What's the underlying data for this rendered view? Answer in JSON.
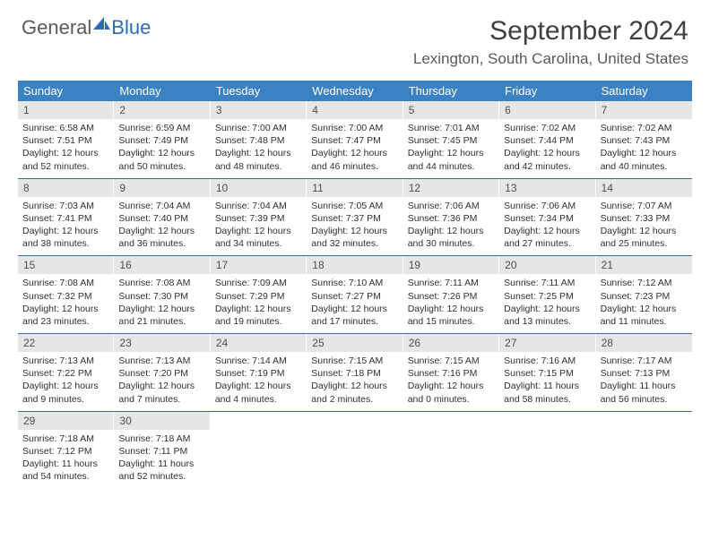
{
  "logo": {
    "general": "General",
    "blue": "Blue"
  },
  "title": "September 2024",
  "location": "Lexington, South Carolina, United States",
  "headerBg": "#3b82c4",
  "dayHeaders": [
    "Sunday",
    "Monday",
    "Tuesday",
    "Wednesday",
    "Thursday",
    "Friday",
    "Saturday"
  ],
  "weeks": [
    [
      {
        "n": "1",
        "sr": "6:58 AM",
        "ss": "7:51 PM",
        "dl": "12 hours and 52 minutes."
      },
      {
        "n": "2",
        "sr": "6:59 AM",
        "ss": "7:49 PM",
        "dl": "12 hours and 50 minutes."
      },
      {
        "n": "3",
        "sr": "7:00 AM",
        "ss": "7:48 PM",
        "dl": "12 hours and 48 minutes."
      },
      {
        "n": "4",
        "sr": "7:00 AM",
        "ss": "7:47 PM",
        "dl": "12 hours and 46 minutes."
      },
      {
        "n": "5",
        "sr": "7:01 AM",
        "ss": "7:45 PM",
        "dl": "12 hours and 44 minutes."
      },
      {
        "n": "6",
        "sr": "7:02 AM",
        "ss": "7:44 PM",
        "dl": "12 hours and 42 minutes."
      },
      {
        "n": "7",
        "sr": "7:02 AM",
        "ss": "7:43 PM",
        "dl": "12 hours and 40 minutes."
      }
    ],
    [
      {
        "n": "8",
        "sr": "7:03 AM",
        "ss": "7:41 PM",
        "dl": "12 hours and 38 minutes."
      },
      {
        "n": "9",
        "sr": "7:04 AM",
        "ss": "7:40 PM",
        "dl": "12 hours and 36 minutes."
      },
      {
        "n": "10",
        "sr": "7:04 AM",
        "ss": "7:39 PM",
        "dl": "12 hours and 34 minutes."
      },
      {
        "n": "11",
        "sr": "7:05 AM",
        "ss": "7:37 PM",
        "dl": "12 hours and 32 minutes."
      },
      {
        "n": "12",
        "sr": "7:06 AM",
        "ss": "7:36 PM",
        "dl": "12 hours and 30 minutes."
      },
      {
        "n": "13",
        "sr": "7:06 AM",
        "ss": "7:34 PM",
        "dl": "12 hours and 27 minutes."
      },
      {
        "n": "14",
        "sr": "7:07 AM",
        "ss": "7:33 PM",
        "dl": "12 hours and 25 minutes."
      }
    ],
    [
      {
        "n": "15",
        "sr": "7:08 AM",
        "ss": "7:32 PM",
        "dl": "12 hours and 23 minutes."
      },
      {
        "n": "16",
        "sr": "7:08 AM",
        "ss": "7:30 PM",
        "dl": "12 hours and 21 minutes."
      },
      {
        "n": "17",
        "sr": "7:09 AM",
        "ss": "7:29 PM",
        "dl": "12 hours and 19 minutes."
      },
      {
        "n": "18",
        "sr": "7:10 AM",
        "ss": "7:27 PM",
        "dl": "12 hours and 17 minutes."
      },
      {
        "n": "19",
        "sr": "7:11 AM",
        "ss": "7:26 PM",
        "dl": "12 hours and 15 minutes."
      },
      {
        "n": "20",
        "sr": "7:11 AM",
        "ss": "7:25 PM",
        "dl": "12 hours and 13 minutes."
      },
      {
        "n": "21",
        "sr": "7:12 AM",
        "ss": "7:23 PM",
        "dl": "12 hours and 11 minutes."
      }
    ],
    [
      {
        "n": "22",
        "sr": "7:13 AM",
        "ss": "7:22 PM",
        "dl": "12 hours and 9 minutes."
      },
      {
        "n": "23",
        "sr": "7:13 AM",
        "ss": "7:20 PM",
        "dl": "12 hours and 7 minutes."
      },
      {
        "n": "24",
        "sr": "7:14 AM",
        "ss": "7:19 PM",
        "dl": "12 hours and 4 minutes."
      },
      {
        "n": "25",
        "sr": "7:15 AM",
        "ss": "7:18 PM",
        "dl": "12 hours and 2 minutes."
      },
      {
        "n": "26",
        "sr": "7:15 AM",
        "ss": "7:16 PM",
        "dl": "12 hours and 0 minutes."
      },
      {
        "n": "27",
        "sr": "7:16 AM",
        "ss": "7:15 PM",
        "dl": "11 hours and 58 minutes."
      },
      {
        "n": "28",
        "sr": "7:17 AM",
        "ss": "7:13 PM",
        "dl": "11 hours and 56 minutes."
      }
    ],
    [
      {
        "n": "29",
        "sr": "7:18 AM",
        "ss": "7:12 PM",
        "dl": "11 hours and 54 minutes."
      },
      {
        "n": "30",
        "sr": "7:18 AM",
        "ss": "7:11 PM",
        "dl": "11 hours and 52 minutes."
      },
      null,
      null,
      null,
      null,
      null
    ]
  ]
}
